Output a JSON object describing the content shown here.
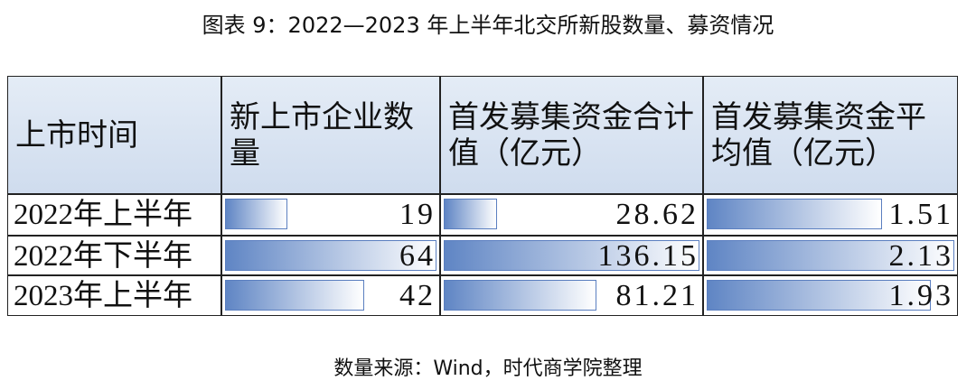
{
  "header": {
    "title": "图表 9：2022—2023 年上半年北交所新股数量、募资情况"
  },
  "table": {
    "columns": [
      "上市时间",
      "新上市企业数量",
      "首发募集资金合计值（亿元）",
      "首发募集资金平均值（亿元）"
    ],
    "rows": [
      [
        "2022年上半年",
        19,
        28.62,
        1.51
      ],
      [
        "2022年下半年",
        64,
        136.15,
        2.13
      ],
      [
        "2023年上半年",
        42,
        81.21,
        1.93
      ]
    ]
  },
  "footer": {
    "source": "数量来源：Wind，时代商学院整理"
  }
}
